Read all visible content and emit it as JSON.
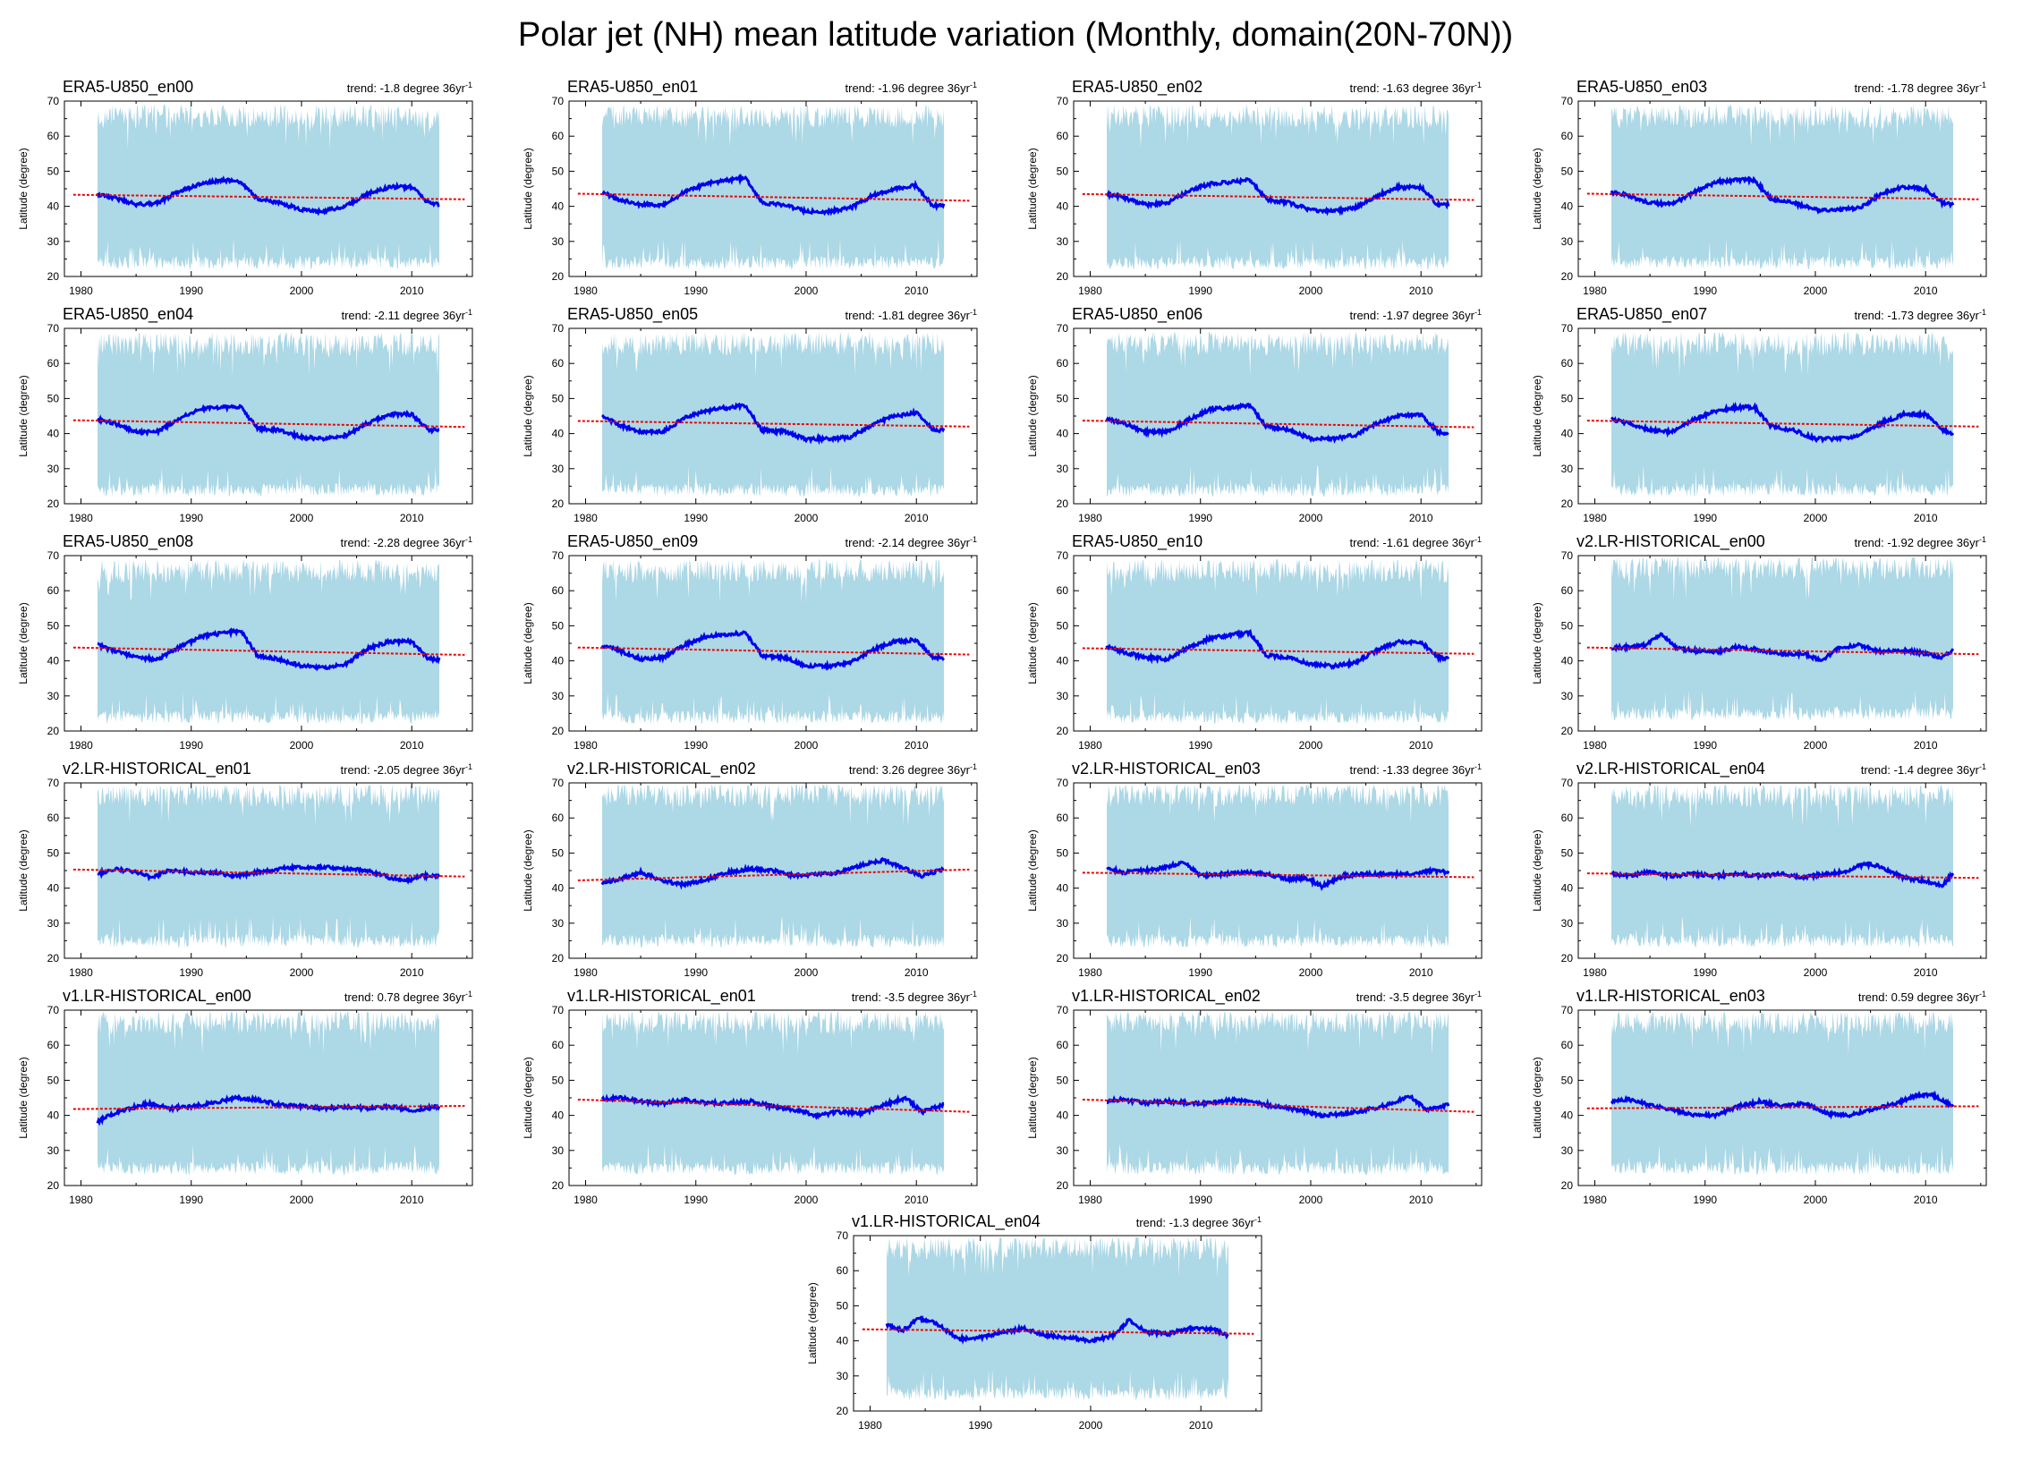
{
  "title": "Polar jet (NH) mean latitude variation (Monthly, domain(20N-70N))",
  "colors": {
    "band": "#add8e6",
    "mean_line": "#0000ee",
    "trend_line": "#ee0000",
    "axis": "#000000"
  },
  "chart_data": {
    "type": "line",
    "xlim": [
      1978.5,
      2015.5
    ],
    "ylim": [
      20,
      70
    ],
    "xticks": [
      1980,
      1990,
      2000,
      2010
    ],
    "yticks": [
      20,
      30,
      40,
      50,
      60,
      70
    ],
    "ylabel": "Latitude (degree)",
    "trend_label_prefix": "trend: ",
    "trend_label_unit": " degree 36yr",
    "trend_label_exp": "-1",
    "data_range": [
      1981.5,
      2012.5
    ],
    "panels": [
      {
        "name": "ERA5-U850_en00",
        "trend": "-1.8",
        "band_lower": 22,
        "band_upper": 66,
        "trend_start": 43.3,
        "trend_end": 42.0,
        "mean_x": [
          1981.5,
          1983,
          1985,
          1987,
          1989,
          1991,
          1993,
          1994.5,
          1996,
          1998,
          2000,
          2002,
          2004,
          2006,
          2008,
          2010,
          2011.5,
          2012.5
        ],
        "mean_y": [
          43.5,
          42.5,
          40.5,
          41,
          44.5,
          46.5,
          47.5,
          47,
          42,
          41,
          39,
          38.5,
          40,
          43.5,
          45.5,
          45.5,
          41,
          40.5
        ]
      },
      {
        "name": "ERA5-U850_en01",
        "trend": "-1.96",
        "band_lower": 22,
        "band_upper": 66,
        "trend_start": 43.6,
        "trend_end": 41.6,
        "mean_x": [
          1981.5,
          1983,
          1985,
          1987,
          1989,
          1991,
          1993,
          1994.5,
          1996,
          1998,
          2000,
          2002,
          2004,
          2006,
          2008,
          2010,
          2011.5,
          2012.5
        ],
        "mean_y": [
          44,
          42,
          40.5,
          40.5,
          44,
          46.5,
          47.5,
          48,
          41,
          40.5,
          38.5,
          38.5,
          39.5,
          43,
          45,
          46,
          40,
          40.5
        ]
      },
      {
        "name": "ERA5-U850_en02",
        "trend": "-1.63",
        "band_lower": 22,
        "band_upper": 66,
        "trend_start": 43.5,
        "trend_end": 41.8,
        "mean_x": [
          1981.5,
          1983,
          1985,
          1987,
          1989,
          1991,
          1993,
          1994.5,
          1996,
          1998,
          2000,
          2002,
          2004,
          2006,
          2008,
          2010,
          2011.5,
          2012.5
        ],
        "mean_y": [
          43.5,
          42.5,
          40.5,
          41,
          44.5,
          46.5,
          47,
          47.5,
          42,
          41,
          39,
          38.5,
          39.5,
          43,
          45.5,
          45.5,
          40.5,
          40.5
        ]
      },
      {
        "name": "ERA5-U850_en03",
        "trend": "-1.78",
        "band_lower": 22,
        "band_upper": 66,
        "trend_start": 43.6,
        "trend_end": 42.0,
        "mean_x": [
          1981.5,
          1983,
          1985,
          1987,
          1989,
          1991,
          1993,
          1994.5,
          1996,
          1998,
          2000,
          2002,
          2004,
          2006,
          2008,
          2010,
          2011.5,
          2012.5
        ],
        "mean_y": [
          44,
          43,
          41,
          40.5,
          44,
          47,
          47.5,
          47.5,
          42,
          41,
          39,
          39,
          39.5,
          43.5,
          45.5,
          45,
          41,
          40.5
        ]
      },
      {
        "name": "ERA5-U850_en04",
        "trend": "-2.11",
        "band_lower": 22,
        "band_upper": 66,
        "trend_start": 43.8,
        "trend_end": 41.9,
        "mean_x": [
          1981.5,
          1983,
          1985,
          1987,
          1989,
          1991,
          1993,
          1994.5,
          1996,
          1998,
          2000,
          2002,
          2004,
          2006,
          2008,
          2010,
          2011.5,
          2012.5
        ],
        "mean_y": [
          44,
          43,
          40.5,
          40.5,
          44.5,
          47,
          47.5,
          47.5,
          41.5,
          41,
          39,
          38.5,
          39.5,
          43,
          45.5,
          45.5,
          41,
          41
        ]
      },
      {
        "name": "ERA5-U850_en05",
        "trend": "-1.81",
        "band_lower": 22,
        "band_upper": 66,
        "trend_start": 43.6,
        "trend_end": 42.0,
        "mean_x": [
          1981.5,
          1983,
          1985,
          1987,
          1989,
          1991,
          1993,
          1994.5,
          1996,
          1998,
          2000,
          2002,
          2004,
          2006,
          2008,
          2010,
          2011.5,
          2012.5
        ],
        "mean_y": [
          45,
          42.5,
          40.5,
          40.5,
          44.5,
          46.5,
          47.5,
          48,
          41,
          40.5,
          38.5,
          38.5,
          39,
          42.5,
          45,
          46,
          41,
          41
        ]
      },
      {
        "name": "ERA5-U850_en06",
        "trend": "-1.97",
        "band_lower": 22,
        "band_upper": 66,
        "trend_start": 43.7,
        "trend_end": 41.8,
        "mean_x": [
          1981.5,
          1983,
          1985,
          1987,
          1989,
          1991,
          1993,
          1994.5,
          1996,
          1998,
          2000,
          2002,
          2004,
          2006,
          2008,
          2010,
          2011.5,
          2012.5
        ],
        "mean_y": [
          44,
          43,
          40.5,
          40.5,
          44,
          47,
          47.5,
          48,
          42,
          41,
          38.5,
          38.5,
          39.5,
          43,
          45,
          45.5,
          40.5,
          40
        ]
      },
      {
        "name": "ERA5-U850_en07",
        "trend": "-1.73",
        "band_lower": 22,
        "band_upper": 66,
        "trend_start": 43.7,
        "trend_end": 42.0,
        "mean_x": [
          1981.5,
          1983,
          1985,
          1987,
          1989,
          1991,
          1993,
          1994.5,
          1996,
          1998,
          2000,
          2002,
          2004,
          2006,
          2008,
          2010,
          2011.5,
          2012.5
        ],
        "mean_y": [
          44,
          43,
          41,
          40.5,
          44,
          46.5,
          47.5,
          47.5,
          42,
          41,
          38.5,
          38.5,
          39.5,
          43,
          45.5,
          45.5,
          41,
          40
        ]
      },
      {
        "name": "ERA5-U850_en08",
        "trend": "-2.28",
        "band_lower": 22,
        "band_upper": 66,
        "trend_start": 43.8,
        "trend_end": 41.7,
        "mean_x": [
          1981.5,
          1983,
          1985,
          1987,
          1989,
          1991,
          1993,
          1994.5,
          1996,
          1998,
          2000,
          2002,
          2004,
          2006,
          2008,
          2010,
          2011.5,
          2012.5
        ],
        "mean_y": [
          44.5,
          43,
          41,
          40.5,
          44,
          47,
          48,
          48.5,
          41.5,
          40.5,
          38.5,
          38,
          39,
          43.5,
          45.5,
          45.5,
          40.5,
          40.5
        ]
      },
      {
        "name": "ERA5-U850_en09",
        "trend": "-2.14",
        "band_lower": 22,
        "band_upper": 66,
        "trend_start": 43.8,
        "trend_end": 41.8,
        "mean_x": [
          1981.5,
          1983,
          1985,
          1987,
          1989,
          1991,
          1993,
          1994.5,
          1996,
          1998,
          2000,
          2002,
          2004,
          2006,
          2008,
          2010,
          2011.5,
          2012.5
        ],
        "mean_y": [
          44.5,
          43,
          40.5,
          41,
          44.5,
          47,
          47.5,
          48,
          41.5,
          41,
          38.5,
          38.5,
          39.5,
          43,
          45.5,
          46,
          41,
          41
        ]
      },
      {
        "name": "ERA5-U850_en10",
        "trend": "-1.61",
        "band_lower": 22,
        "band_upper": 66,
        "trend_start": 43.6,
        "trend_end": 42.0,
        "mean_x": [
          1981.5,
          1983,
          1985,
          1987,
          1989,
          1991,
          1993,
          1994.5,
          1996,
          1998,
          2000,
          2002,
          2004,
          2006,
          2008,
          2010,
          2011.5,
          2012.5
        ],
        "mean_y": [
          44,
          42.5,
          41,
          40.5,
          44,
          46.5,
          47.5,
          48,
          41.5,
          41,
          39,
          38.5,
          39.5,
          43,
          45.5,
          45.5,
          41,
          40.5
        ]
      },
      {
        "name": "v2.LR-HISTORICAL_en00",
        "trend": "-1.92",
        "band_lower": 23,
        "band_upper": 67,
        "trend_start": 43.8,
        "trend_end": 41.9,
        "mean_x": [
          1981.5,
          1983,
          1984.5,
          1986,
          1987.5,
          1989,
          1991,
          1993,
          1995,
          1997,
          1999,
          2000.5,
          2002,
          2004,
          2006,
          2008,
          2010,
          2011.5,
          2012.5
        ],
        "mean_y": [
          43.5,
          44,
          44.5,
          47.5,
          43.5,
          43,
          42.5,
          44,
          43,
          42,
          42,
          40,
          43.5,
          44.5,
          42.5,
          43,
          42,
          41,
          43
        ]
      },
      {
        "name": "v2.LR-HISTORICAL_en01",
        "trend": "-2.05",
        "band_lower": 23,
        "band_upper": 67,
        "trend_start": 45.3,
        "trend_end": 43.3,
        "mean_x": [
          1981.5,
          1983,
          1985,
          1986.5,
          1988,
          1990,
          1992,
          1994,
          1996,
          1998,
          2000,
          2002,
          2004,
          2006,
          2008,
          2009.5,
          2011,
          2012.5
        ],
        "mean_y": [
          44,
          45.5,
          44.5,
          43,
          45,
          44.5,
          44.5,
          43.5,
          44.5,
          45.5,
          46,
          46,
          45.5,
          45,
          43,
          42,
          43.5,
          43.5
        ]
      },
      {
        "name": "v2.LR-HISTORICAL_en02",
        "trend": "3.26",
        "band_lower": 23,
        "band_upper": 67,
        "trend_start": 42.2,
        "trend_end": 45.3,
        "mean_x": [
          1981.5,
          1983,
          1985,
          1987,
          1989,
          1991,
          1993,
          1995,
          1997,
          1999,
          2001,
          2003,
          2005,
          2007,
          2009,
          2010.5,
          2012.5
        ],
        "mean_y": [
          41.5,
          42.5,
          44.5,
          42,
          41,
          42.5,
          44.5,
          45.5,
          45,
          43.5,
          44,
          44.5,
          46.5,
          48,
          45.5,
          43.5,
          45.5
        ]
      },
      {
        "name": "v2.LR-HISTORICAL_en03",
        "trend": "-1.33",
        "band_lower": 23,
        "band_upper": 67,
        "trend_start": 44.4,
        "trend_end": 43.1,
        "mean_x": [
          1981.5,
          1983,
          1985,
          1987,
          1988.5,
          1990,
          1992,
          1994,
          1996,
          1998,
          1999.5,
          2001,
          2003,
          2005,
          2007,
          2009,
          2011,
          2012.5
        ],
        "mean_y": [
          45.5,
          44.5,
          45,
          46,
          47.5,
          43.5,
          44,
          44.5,
          44,
          42.5,
          43,
          40.5,
          43.5,
          44,
          44,
          44,
          45,
          44.5
        ]
      },
      {
        "name": "v2.LR-HISTORICAL_en04",
        "trend": "-1.4",
        "band_lower": 23,
        "band_upper": 67,
        "trend_start": 44.2,
        "trend_end": 42.9,
        "mean_x": [
          1981.5,
          1983,
          1985,
          1987,
          1989,
          1991,
          1993,
          1995,
          1997,
          1999,
          2001,
          2003,
          2004.5,
          2006,
          2008,
          2010,
          2011.5,
          2012.5
        ],
        "mean_y": [
          44,
          43.5,
          44.5,
          43.5,
          44,
          43.5,
          44,
          43.5,
          44,
          43,
          44,
          45,
          47,
          46,
          43,
          42,
          40.5,
          44.5
        ]
      },
      {
        "name": "v1.LR-HISTORICAL_en00",
        "trend": "0.78",
        "band_lower": 23,
        "band_upper": 67,
        "trend_start": 41.8,
        "trend_end": 42.7,
        "mean_x": [
          1981.5,
          1982.5,
          1984,
          1986,
          1988,
          1990,
          1992,
          1994,
          1996,
          1998,
          2000,
          2002,
          2004,
          2006,
          2008,
          2010,
          2012.5
        ],
        "mean_y": [
          38,
          40,
          41.5,
          43.5,
          42,
          42.5,
          43.5,
          45,
          44.5,
          43,
          42.5,
          42,
          42.5,
          42,
          42.5,
          41.5,
          42.5
        ]
      },
      {
        "name": "v1.LR-HISTORICAL_en01",
        "trend": "-3.5",
        "band_lower": 23,
        "band_upper": 67,
        "trend_start": 44.5,
        "trend_end": 41.0,
        "mean_x": [
          1981.5,
          1983,
          1985,
          1987,
          1989,
          1991,
          1993,
          1995,
          1997,
          1999,
          2001,
          2003,
          2005,
          2007,
          2009,
          2010.5,
          2012.5
        ],
        "mean_y": [
          44.5,
          45,
          44,
          43.5,
          44.5,
          43.5,
          43.5,
          44,
          42.5,
          41.5,
          40,
          41,
          40.5,
          43,
          45,
          41,
          43
        ]
      },
      {
        "name": "v1.LR-HISTORICAL_en02",
        "trend": "-3.5",
        "band_lower": 23,
        "band_upper": 67,
        "trend_start": 44.5,
        "trend_end": 41.0,
        "mean_x": [
          1981.5,
          1983,
          1985,
          1987,
          1989,
          1991,
          1993,
          1995,
          1997,
          1999,
          2001,
          2003,
          2005,
          2007,
          2009,
          2010.5,
          2012.5
        ],
        "mean_y": [
          44,
          44.5,
          43.5,
          44,
          43.5,
          43.5,
          44.5,
          43.5,
          42.5,
          41.5,
          40,
          40.5,
          41.5,
          43,
          45.5,
          41.5,
          43
        ]
      },
      {
        "name": "v1.LR-HISTORICAL_en03",
        "trend": "0.59",
        "band_lower": 23,
        "band_upper": 67,
        "trend_start": 42.0,
        "trend_end": 42.6,
        "mean_x": [
          1981.5,
          1983,
          1985,
          1987,
          1989,
          1991,
          1993,
          1995,
          1997,
          1999,
          2001,
          2003,
          2005,
          2007,
          2009,
          2010.5,
          2012.5
        ],
        "mean_y": [
          44,
          44.5,
          43,
          41.5,
          40,
          40,
          42.5,
          44,
          42.5,
          43.5,
          40.5,
          40,
          41.5,
          43,
          45.5,
          46,
          42.5
        ]
      },
      {
        "name": "v1.LR-HISTORICAL_en04",
        "trend": "-1.3",
        "band_lower": 23,
        "band_upper": 67,
        "trend_start": 43.3,
        "trend_end": 42.0,
        "mean_x": [
          1981.5,
          1983,
          1984.5,
          1986,
          1988,
          1990,
          1992,
          1994,
          1996,
          1998,
          2000,
          2002,
          2003.5,
          2005,
          2007,
          2009,
          2011,
          2012.5
        ],
        "mean_y": [
          44.5,
          43,
          46.5,
          45,
          40.5,
          41,
          42.5,
          43.5,
          41.5,
          41,
          40,
          41.5,
          46,
          42.5,
          42,
          43.5,
          43.5,
          41.5
        ]
      }
    ]
  }
}
